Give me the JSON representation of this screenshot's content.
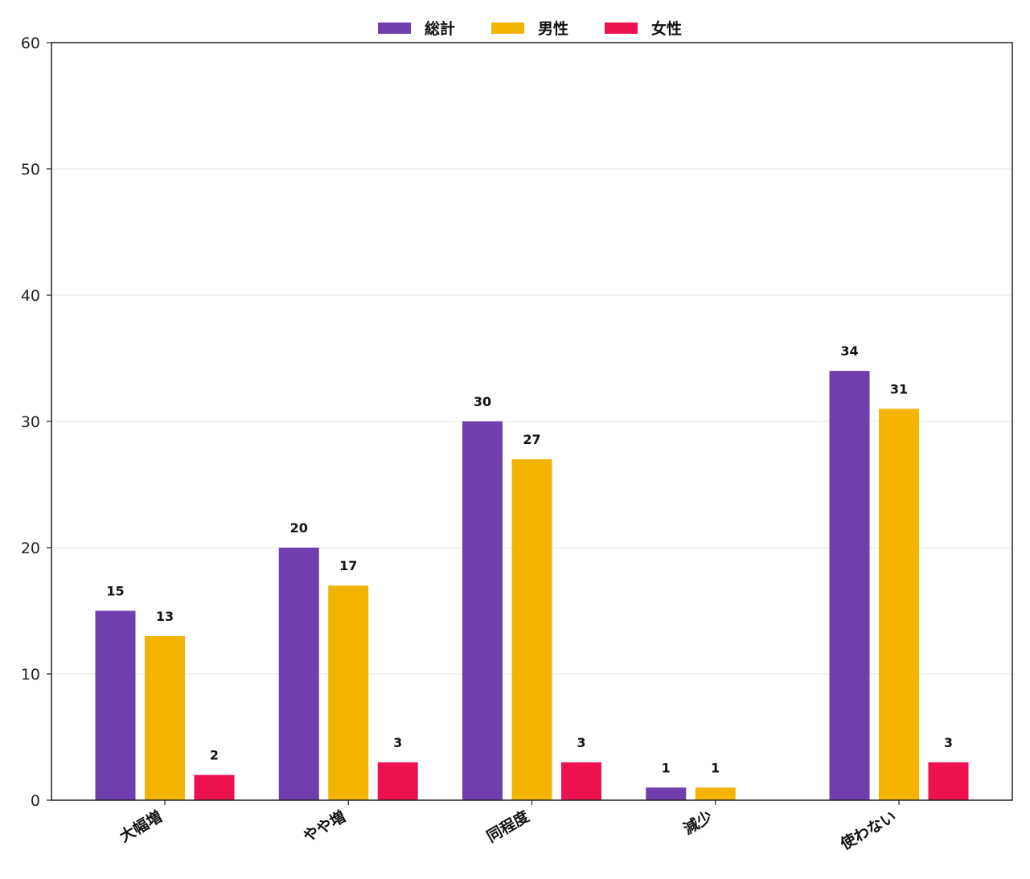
{
  "chart_data": {
    "type": "bar",
    "categories": [
      "大幅増",
      "やや増",
      "同程度",
      "減少",
      "使わない"
    ],
    "series": [
      {
        "name": "総計",
        "color": "#6f3fad",
        "values": [
          15,
          20,
          30,
          1,
          34
        ]
      },
      {
        "name": "男性",
        "color": "#f2b400",
        "values": [
          13,
          17,
          27,
          1,
          31
        ]
      },
      {
        "name": "女性",
        "color": "#ee1150",
        "values": [
          2,
          3,
          3,
          0,
          3
        ]
      }
    ],
    "ylim": [
      0,
      60
    ],
    "yticks": [
      0,
      10,
      20,
      30,
      40,
      50,
      60
    ],
    "grid": "horizontal",
    "legend_position": "top-center",
    "title": "",
    "xlabel": "",
    "ylabel": ""
  }
}
